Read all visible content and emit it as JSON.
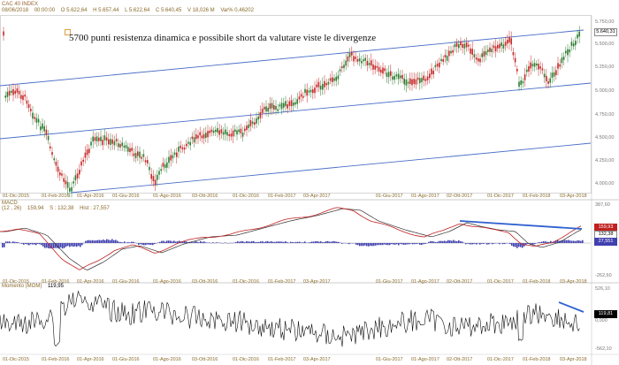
{
  "header": {
    "symbol": "CAC 40 INDEX",
    "date": "08/06/2018",
    "time": "00:00:00",
    "open": "O 5.622,64",
    "high": "H 5.657,44",
    "low": "L 5.622,64",
    "close": "C 5.640,45",
    "volume": "V 18,026 M",
    "var": "Var% 0,46202"
  },
  "annotation": "5700 punti resistenza dinamica e possibile short da valutare viste le divergenze",
  "price_axis": [
    "5.750,00",
    "5.500,00",
    "5.250,00",
    "5.000,00",
    "4.750,00",
    "4.500,00",
    "4.250,00",
    "4.000,00"
  ],
  "last_price": "5.640,31",
  "date_labels": [
    "01-Dic-2015",
    "01-Feb-2016",
    "01-Apr-2016",
    "01-Giu-2016",
    "01-Ago-2016",
    "03-Ott-2016",
    "01-Dic-2016",
    "01-Feb-2017",
    "03-Apr-2017",
    "01-Giu-2017",
    "01-Ago-2017",
    "02-Ott-2017",
    "01-Dic-2017",
    "01-Feb-2018",
    "03-Apr-2018"
  ],
  "macd": {
    "label": "MACD",
    "params": "(12 , 26)",
    "value": "159,94",
    "signal": "S : 132,38",
    "hist": "Hist : 27,557",
    "axis_top": "387,60",
    "axis_bottom": "-262,60",
    "tag_macd": "159,93",
    "tag_signal": "132,38",
    "tag_hist": "27,551"
  },
  "momentum": {
    "label": "Momento (MOM)",
    "value": "119,95",
    "axis_top": "526,10",
    "axis_mid": "0,000",
    "axis_bottom": "-562,10",
    "tag_value": "119,81"
  },
  "colors": {
    "channel": "#4a6fc8",
    "divergence": "#2f5fd0",
    "macd_line": "#c02020",
    "signal_line": "#333333",
    "histogram": "#4040b0",
    "candle_up": "#2e7d32",
    "candle_down": "#c62828"
  }
}
